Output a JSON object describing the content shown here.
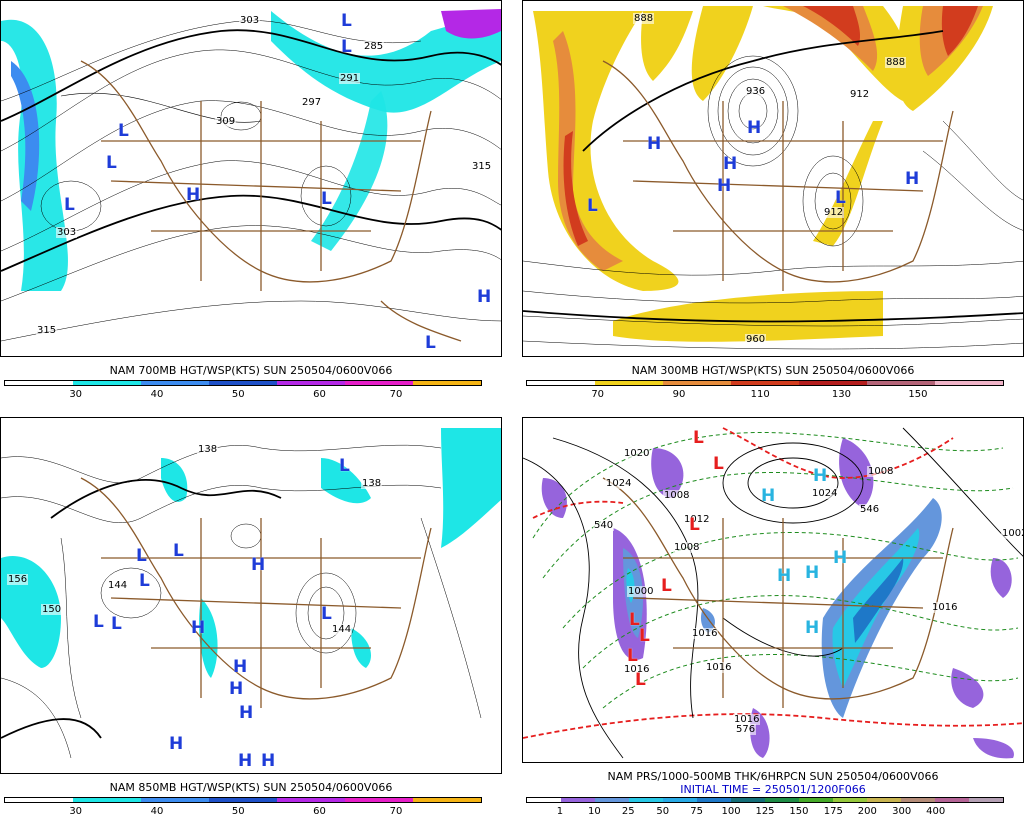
{
  "panels": [
    {
      "id": "p700",
      "title": "NAM 700MB HGT/WSP(KTS) SUN 250504/0600V066",
      "init": "",
      "scale_labels": [
        "30",
        "40",
        "50",
        "60",
        "70"
      ],
      "scale_colors": [
        "#ffffff",
        "#ffffff",
        "#1ee6e6",
        "#1ee6e6",
        "#3c8cf0",
        "#3c8cf0",
        "#1e50c8",
        "#1e50c8",
        "#b428e6",
        "#b428e6",
        "#e61ec8",
        "#e61ec8",
        "#f5b414",
        "#f5b414"
      ],
      "contour_labels": [
        "303",
        "309",
        "285",
        "291",
        "297",
        "315",
        "303",
        "315"
      ],
      "highs": [
        "H",
        "H"
      ],
      "lows": [
        "L",
        "L",
        "L",
        "L",
        "L",
        "L",
        "L"
      ]
    },
    {
      "id": "p300",
      "title": "NAM 300MB HGT/WSP(KTS) SUN 250504/0600V066",
      "init": "",
      "scale_labels": [
        "70",
        "90",
        "110",
        "130",
        "150"
      ],
      "scale_colors": [
        "#ffffff",
        "#ffffff",
        "#f0d21e",
        "#f0d21e",
        "#e68c3c",
        "#e68c3c",
        "#d23c1e",
        "#d23c1e",
        "#b41e1e",
        "#b41e1e",
        "#b46478",
        "#b46478",
        "#f0b4c8",
        "#f0b4c8"
      ],
      "contour_labels": [
        "888",
        "936",
        "912",
        "888",
        "960",
        "912"
      ],
      "highs": [
        "H",
        "H",
        "H",
        "H",
        "H"
      ],
      "lows": [
        "L",
        "L"
      ]
    },
    {
      "id": "p850",
      "title": "NAM 850MB HGT/WSP(KTS) SUN 250504/0600V066",
      "init": "",
      "scale_labels": [
        "30",
        "40",
        "50",
        "60",
        "70"
      ],
      "scale_colors": [
        "#ffffff",
        "#ffffff",
        "#1ee6e6",
        "#1ee6e6",
        "#3c8cf0",
        "#3c8cf0",
        "#1e50c8",
        "#1e50c8",
        "#b428e6",
        "#b428e6",
        "#e61ec8",
        "#e61ec8",
        "#f5b414",
        "#f5b414"
      ],
      "contour_labels": [
        "138",
        "156",
        "150",
        "144",
        "144",
        "138"
      ],
      "highs": [
        "H",
        "H",
        "H",
        "H",
        "H",
        "H",
        "H",
        "H"
      ],
      "lows": [
        "L",
        "L",
        "L",
        "L",
        "L",
        "L",
        "L"
      ]
    },
    {
      "id": "pprs",
      "title": "NAM PRS/1000-500MB THK/6HRPCN SUN 250504/0600V066",
      "init": "INITIAL TIME = 250501/1200F066",
      "scale_labels": [
        "1",
        "10",
        "25",
        "50",
        "75",
        "100",
        "125",
        "150",
        "175",
        "200",
        "300",
        "400"
      ],
      "scale_colors": [
        "#ffffff",
        "#9664dc",
        "#6496dc",
        "#28c8e6",
        "#28aae6",
        "#1e78c8",
        "#146e78",
        "#1e8c46",
        "#46aa28",
        "#96c83c",
        "#c8b450",
        "#b48c78",
        "#b46496",
        "#b4a0b4"
      ],
      "contour_labels": [
        "1024",
        "1008",
        "1000",
        "1016",
        "1016",
        "1016",
        "1016",
        "1024",
        "1008",
        "1016",
        "540",
        "546",
        "576",
        "1020",
        "1008",
        "1012",
        "1002"
      ],
      "highs": [
        "H",
        "H",
        "H",
        "H",
        "H",
        "H"
      ],
      "lows": [
        "L",
        "L",
        "L",
        "L",
        "L",
        "L",
        "L",
        "L"
      ]
    }
  ]
}
